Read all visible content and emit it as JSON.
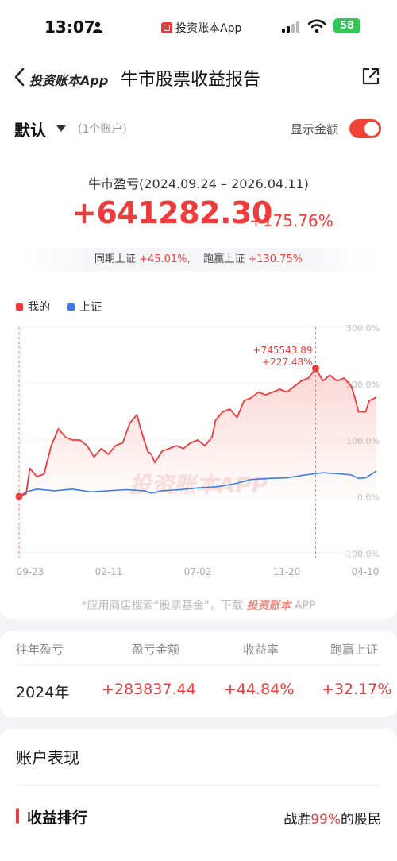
{
  "status_bar": {
    "time": "13:07",
    "app_name": "投资账本App",
    "battery": "58",
    "icons": [
      "person-icon",
      "signal-icon",
      "wifi-icon",
      "battery-icon"
    ]
  },
  "nav": {
    "back_label": "投资账本App",
    "title": "牛市股票收益报告",
    "icons": [
      "back-chevron-icon",
      "share-icon"
    ]
  },
  "summary": {
    "account": "默认",
    "account_count": "(1个账户)",
    "show_amount_label": "显示金额",
    "show_amount_on": true,
    "period_label": "牛市盈亏(2024.09.24 – 2026.04.11)",
    "profit": "+641282.30",
    "profit_pct": "+175.76%",
    "compare_label_1": "同期上证",
    "compare_value_1": "+45.01%,",
    "compare_label_2": "跑赢上证",
    "compare_value_2": "+130.75%"
  },
  "colors": {
    "accent_red": "#ee3b3b",
    "index_blue": "#3b7ce8",
    "toggle_on": "#f24236"
  },
  "chart_data": {
    "type": "line",
    "y_unit": "%",
    "ylim": [
      -100,
      300
    ],
    "y_ticks": [
      "300.0%",
      "200.0%",
      "100.0%",
      "0.0%",
      "-100.0%"
    ],
    "x_tick_labels": [
      "09-23",
      "02-11",
      "07-02",
      "11-20",
      "04-10"
    ],
    "watermark": "投资账本APP",
    "marker_label_amount": "+745543.89",
    "marker_label_pct": "+227.48%",
    "series": [
      {
        "name": "我的",
        "color": "#ee3b3b",
        "points": [
          [
            0,
            0
          ],
          [
            0.02,
            5
          ],
          [
            0.03,
            50
          ],
          [
            0.05,
            35
          ],
          [
            0.07,
            40
          ],
          [
            0.09,
            90
          ],
          [
            0.11,
            120
          ],
          [
            0.13,
            105
          ],
          [
            0.15,
            100
          ],
          [
            0.17,
            100
          ],
          [
            0.19,
            90
          ],
          [
            0.21,
            70
          ],
          [
            0.23,
            85
          ],
          [
            0.25,
            75
          ],
          [
            0.27,
            90
          ],
          [
            0.29,
            95
          ],
          [
            0.31,
            130
          ],
          [
            0.33,
            145
          ],
          [
            0.34,
            120
          ],
          [
            0.36,
            80
          ],
          [
            0.37,
            75
          ],
          [
            0.38,
            60
          ],
          [
            0.4,
            80
          ],
          [
            0.42,
            85
          ],
          [
            0.44,
            90
          ],
          [
            0.46,
            85
          ],
          [
            0.48,
            95
          ],
          [
            0.5,
            100
          ],
          [
            0.52,
            90
          ],
          [
            0.54,
            105
          ],
          [
            0.55,
            135
          ],
          [
            0.57,
            150
          ],
          [
            0.59,
            155
          ],
          [
            0.61,
            140
          ],
          [
            0.63,
            170
          ],
          [
            0.65,
            175
          ],
          [
            0.67,
            185
          ],
          [
            0.69,
            180
          ],
          [
            0.71,
            185
          ],
          [
            0.73,
            190
          ],
          [
            0.75,
            185
          ],
          [
            0.77,
            195
          ],
          [
            0.79,
            205
          ],
          [
            0.81,
            210
          ],
          [
            0.83,
            227
          ],
          [
            0.85,
            205
          ],
          [
            0.87,
            215
          ],
          [
            0.89,
            205
          ],
          [
            0.91,
            210
          ],
          [
            0.93,
            195
          ],
          [
            0.94,
            175
          ],
          [
            0.95,
            150
          ],
          [
            0.97,
            150
          ],
          [
            0.98,
            170
          ],
          [
            1,
            175.76
          ]
        ]
      },
      {
        "name": "上证",
        "color": "#3b7ce8",
        "points": [
          [
            0,
            0
          ],
          [
            0.02,
            8
          ],
          [
            0.05,
            13
          ],
          [
            0.1,
            10
          ],
          [
            0.15,
            13
          ],
          [
            0.2,
            8
          ],
          [
            0.25,
            10
          ],
          [
            0.3,
            12
          ],
          [
            0.35,
            10
          ],
          [
            0.37,
            6
          ],
          [
            0.4,
            10
          ],
          [
            0.45,
            12
          ],
          [
            0.5,
            15
          ],
          [
            0.55,
            17
          ],
          [
            0.6,
            22
          ],
          [
            0.65,
            30
          ],
          [
            0.7,
            32
          ],
          [
            0.75,
            33
          ],
          [
            0.8,
            38
          ],
          [
            0.85,
            42
          ],
          [
            0.9,
            40
          ],
          [
            0.93,
            38
          ],
          [
            0.95,
            32
          ],
          [
            0.97,
            33
          ],
          [
            1,
            45.01
          ]
        ]
      }
    ],
    "highlight_x": 0.83
  },
  "footnote": {
    "text_before": "*应用商店搜索“股票基金”，下载",
    "brand": "投资账本",
    "text_after": "APP"
  },
  "year_table": {
    "headers": [
      "往年盈亏",
      "盈亏金额",
      "收益率",
      "跑赢上证"
    ],
    "rows": [
      [
        "2024年",
        "+283837.44",
        "+44.84%",
        "+32.17%"
      ]
    ]
  },
  "account_performance": {
    "title": "账户表现",
    "rank_title": "收益排行",
    "beat_before": "战胜",
    "beat_pct": "99%",
    "beat_after": "的股民"
  }
}
